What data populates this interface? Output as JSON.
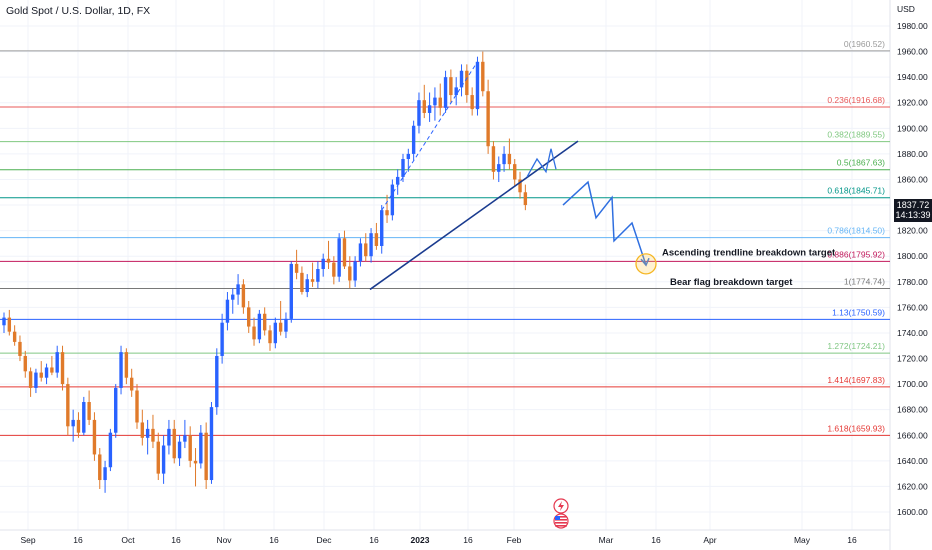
{
  "header": {
    "symbol": "Gold Spot / U.S. Dollar, 1D, FX",
    "currency": "USD"
  },
  "price_badge": {
    "price": "1837.72",
    "countdown": "14:13:39"
  },
  "colors": {
    "up": "#2962ff",
    "down": "#e07a2a",
    "trendline": "#1a3b8f",
    "projection": "#2f6fe0",
    "grid": "#f0f3fa"
  },
  "events": {
    "icon_top": "lightning-bolt-icon",
    "icon_bottom": "us-flag-icon"
  },
  "chart_data": {
    "type": "candlestick",
    "title": "Gold Spot / U.S. Dollar, 1D, FX",
    "ylim": [
      1590,
      1990
    ],
    "yticks": [
      1600,
      1620,
      1640,
      1660,
      1680,
      1700,
      1720,
      1740,
      1760,
      1780,
      1800,
      1820,
      1840,
      1860,
      1880,
      1900,
      1920,
      1940,
      1960,
      1980
    ],
    "xtick_labels": [
      "Sep",
      "16",
      "Oct",
      "16",
      "Nov",
      "16",
      "Dec",
      "16",
      "2023",
      "16",
      "Feb",
      "Mar",
      "16",
      "Apr",
      "May",
      "16"
    ],
    "candles": [
      [
        1746,
        1756,
        1740,
        1752
      ],
      [
        1752,
        1758,
        1738,
        1741
      ],
      [
        1741,
        1746,
        1730,
        1733
      ],
      [
        1733,
        1738,
        1718,
        1722
      ],
      [
        1722,
        1726,
        1705,
        1710
      ],
      [
        1710,
        1713,
        1690,
        1697
      ],
      [
        1697,
        1712,
        1693,
        1709
      ],
      [
        1709,
        1718,
        1702,
        1705
      ],
      [
        1705,
        1716,
        1700,
        1713
      ],
      [
        1713,
        1722,
        1707,
        1709
      ],
      [
        1709,
        1730,
        1705,
        1725
      ],
      [
        1725,
        1730,
        1695,
        1700
      ],
      [
        1700,
        1705,
        1660,
        1667
      ],
      [
        1667,
        1680,
        1655,
        1672
      ],
      [
        1672,
        1678,
        1658,
        1662
      ],
      [
        1662,
        1690,
        1660,
        1686
      ],
      [
        1686,
        1695,
        1668,
        1672
      ],
      [
        1672,
        1678,
        1640,
        1645
      ],
      [
        1645,
        1650,
        1618,
        1625
      ],
      [
        1625,
        1640,
        1615,
        1635
      ],
      [
        1635,
        1665,
        1632,
        1662
      ],
      [
        1662,
        1700,
        1658,
        1697
      ],
      [
        1697,
        1730,
        1692,
        1725
      ],
      [
        1725,
        1728,
        1700,
        1705
      ],
      [
        1705,
        1712,
        1690,
        1695
      ],
      [
        1695,
        1700,
        1665,
        1670
      ],
      [
        1670,
        1680,
        1652,
        1658
      ],
      [
        1658,
        1672,
        1645,
        1665
      ],
      [
        1665,
        1676,
        1650,
        1655
      ],
      [
        1655,
        1662,
        1625,
        1630
      ],
      [
        1630,
        1660,
        1622,
        1652
      ],
      [
        1652,
        1672,
        1645,
        1665
      ],
      [
        1665,
        1672,
        1638,
        1642
      ],
      [
        1642,
        1660,
        1636,
        1655
      ],
      [
        1655,
        1672,
        1650,
        1660
      ],
      [
        1660,
        1667,
        1635,
        1640
      ],
      [
        1640,
        1650,
        1620,
        1638
      ],
      [
        1638,
        1668,
        1634,
        1662
      ],
      [
        1662,
        1670,
        1618,
        1625
      ],
      [
        1625,
        1686,
        1622,
        1682
      ],
      [
        1682,
        1728,
        1676,
        1722
      ],
      [
        1722,
        1755,
        1716,
        1748
      ],
      [
        1748,
        1772,
        1742,
        1766
      ],
      [
        1766,
        1775,
        1755,
        1770
      ],
      [
        1770,
        1786,
        1762,
        1778
      ],
      [
        1778,
        1782,
        1755,
        1760
      ],
      [
        1760,
        1765,
        1740,
        1745
      ],
      [
        1745,
        1752,
        1730,
        1735
      ],
      [
        1735,
        1758,
        1732,
        1755
      ],
      [
        1755,
        1760,
        1738,
        1742
      ],
      [
        1742,
        1746,
        1726,
        1732
      ],
      [
        1732,
        1752,
        1728,
        1748
      ],
      [
        1748,
        1765,
        1738,
        1741
      ],
      [
        1741,
        1756,
        1736,
        1751
      ],
      [
        1751,
        1796,
        1748,
        1794
      ],
      [
        1794,
        1805,
        1782,
        1787
      ],
      [
        1787,
        1792,
        1770,
        1772
      ],
      [
        1772,
        1786,
        1768,
        1782
      ],
      [
        1782,
        1795,
        1776,
        1780
      ],
      [
        1780,
        1796,
        1775,
        1790
      ],
      [
        1790,
        1802,
        1784,
        1798
      ],
      [
        1798,
        1812,
        1790,
        1795
      ],
      [
        1795,
        1800,
        1778,
        1784
      ],
      [
        1784,
        1818,
        1780,
        1814
      ],
      [
        1814,
        1820,
        1790,
        1792
      ],
      [
        1792,
        1800,
        1775,
        1781
      ],
      [
        1781,
        1800,
        1776,
        1796
      ],
      [
        1796,
        1814,
        1792,
        1810
      ],
      [
        1810,
        1818,
        1796,
        1800
      ],
      [
        1800,
        1822,
        1795,
        1818
      ],
      [
        1818,
        1826,
        1805,
        1808
      ],
      [
        1808,
        1840,
        1802,
        1836
      ],
      [
        1836,
        1848,
        1826,
        1832
      ],
      [
        1832,
        1860,
        1828,
        1856
      ],
      [
        1856,
        1868,
        1848,
        1862
      ],
      [
        1862,
        1880,
        1858,
        1876
      ],
      [
        1876,
        1884,
        1866,
        1880
      ],
      [
        1880,
        1906,
        1875,
        1902
      ],
      [
        1902,
        1928,
        1896,
        1922
      ],
      [
        1922,
        1934,
        1908,
        1912
      ],
      [
        1912,
        1928,
        1905,
        1918
      ],
      [
        1918,
        1932,
        1906,
        1924
      ],
      [
        1924,
        1935,
        1910,
        1916
      ],
      [
        1916,
        1945,
        1912,
        1940
      ],
      [
        1940,
        1946,
        1920,
        1926
      ],
      [
        1926,
        1940,
        1918,
        1932
      ],
      [
        1932,
        1950,
        1925,
        1945
      ],
      [
        1945,
        1950,
        1920,
        1926
      ],
      [
        1926,
        1932,
        1910,
        1915
      ],
      [
        1915,
        1956,
        1910,
        1952
      ],
      [
        1952,
        1960,
        1925,
        1929
      ],
      [
        1929,
        1938,
        1880,
        1886
      ],
      [
        1886,
        1890,
        1860,
        1866
      ],
      [
        1866,
        1878,
        1858,
        1872
      ],
      [
        1872,
        1886,
        1866,
        1880
      ],
      [
        1880,
        1892,
        1868,
        1872
      ],
      [
        1872,
        1876,
        1855,
        1860
      ],
      [
        1860,
        1866,
        1845,
        1850
      ],
      [
        1850,
        1856,
        1836,
        1840
      ]
    ],
    "fib_levels": [
      {
        "label": "0(1960.52)",
        "value": 1960.52,
        "color": "#9a9a9a"
      },
      {
        "label": "0.236(1916.68)",
        "value": 1916.68,
        "color": "#e85858"
      },
      {
        "label": "0.382(1889.55)",
        "value": 1889.55,
        "color": "#80c880"
      },
      {
        "label": "0.5(1867.63)",
        "value": 1867.63,
        "color": "#4caf50"
      },
      {
        "label": "0.618(1845.71)",
        "value": 1845.71,
        "color": "#009688"
      },
      {
        "label": "0.786(1814.50)",
        "value": 1814.5,
        "color": "#64b5f6"
      },
      {
        "label": "0.886(1795.92)",
        "value": 1795.92,
        "color": "#c2185b"
      },
      {
        "label": "1(1774.74)",
        "value": 1774.74,
        "color": "#787878"
      },
      {
        "label": "1.13(1750.59)",
        "value": 1750.59,
        "color": "#2962ff"
      },
      {
        "label": "1.272(1724.21)",
        "value": 1724.21,
        "color": "#81c784"
      },
      {
        "label": "1.414(1697.83)",
        "value": 1697.83,
        "color": "#e53935"
      },
      {
        "label": "1.618(1659.93)",
        "value": 1659.93,
        "color": "#e53935"
      }
    ],
    "annotations": [
      {
        "text": "Ascending trendline breakdown target",
        "value": 1802
      },
      {
        "text": "Bear flag breakdown target",
        "value": 1780
      }
    ],
    "trendline": {
      "from_value": 1774,
      "to_value": 1890
    },
    "projection": [
      1840,
      1858,
      1830,
      1846,
      1812,
      1826,
      1793
    ],
    "projection_flag": [
      1862,
      1876,
      1866,
      1884,
      1868
    ]
  }
}
